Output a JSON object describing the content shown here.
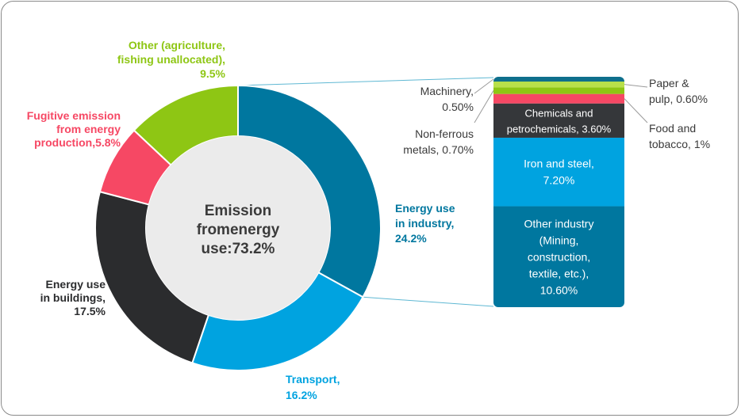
{
  "chart_data": [
    {
      "type": "pie",
      "center_label": [
        "Emission",
        "fromenergy",
        "use:73.2%"
      ],
      "slices": [
        {
          "name": "Energy use in industry",
          "value": 24.2,
          "color": "#00779F",
          "label_lines": [
            "Energy use",
            "in industry,",
            "24.2%"
          ]
        },
        {
          "name": "Transport",
          "value": 16.2,
          "color": "#00A3E0",
          "label_lines": [
            "Transport,",
            "16.2%"
          ]
        },
        {
          "name": "Energy use in buildings",
          "value": 17.5,
          "color": "#2B2C2E",
          "label_lines": [
            "Energy use",
            "in buildings,",
            "17.5%"
          ]
        },
        {
          "name": "Fugitive emission from energy production",
          "value": 5.8,
          "color": "#F64864",
          "label_lines": [
            "Fugitive emission",
            "from energy",
            "production,5.8%"
          ]
        },
        {
          "name": "Other (agriculture, fishing unallocated)",
          "value": 9.5,
          "color": "#8EC614",
          "label_lines": [
            "Other (agriculture,",
            "fishing unallocated),",
            "9.5%"
          ]
        }
      ]
    },
    {
      "type": "bar",
      "stacked": true,
      "segments": [
        {
          "name": "Other industry (Mining, construction, textile, etc.)",
          "value": 10.6,
          "color": "#00779F",
          "label_lines": [
            "Other industry",
            "(Mining,",
            "construction,",
            "textile, etc.),",
            "10.60%"
          ]
        },
        {
          "name": "Iron and steel",
          "value": 7.2,
          "color": "#00A3E0",
          "label_lines": [
            "Iron and steel,",
            "7.20%"
          ]
        },
        {
          "name": "Chemicals and petrochemicals",
          "value": 3.6,
          "color": "#35373A",
          "label_lines": [
            "Chemicals and",
            "petrochemicals, 3.60%"
          ]
        },
        {
          "name": "Food and tobacco",
          "value": 1.0,
          "color": "#F64864",
          "label_lines": [
            "Food and",
            "tobacco, 1%"
          ]
        },
        {
          "name": "Non-ferrous metals",
          "value": 0.7,
          "color": "#8EC614",
          "label_lines": [
            "Non-ferrous",
            "metals, 0.70%"
          ]
        },
        {
          "name": "Paper & pulp",
          "value": 0.6,
          "color": "#B8E04A",
          "label_lines": [
            "Paper &",
            "pulp, 0.60%"
          ]
        },
        {
          "name": "Machinery",
          "value": 0.5,
          "color": "#0E6F8C",
          "label_lines": [
            "Machinery,",
            "0.50%"
          ]
        }
      ]
    }
  ]
}
